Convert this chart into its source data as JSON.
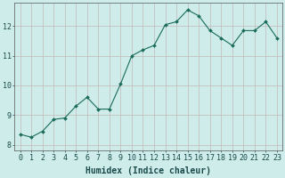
{
  "x": [
    0,
    1,
    2,
    3,
    4,
    5,
    6,
    7,
    8,
    9,
    10,
    11,
    12,
    13,
    14,
    15,
    16,
    17,
    18,
    19,
    20,
    21,
    22,
    23
  ],
  "y": [
    8.35,
    8.25,
    8.45,
    8.85,
    8.9,
    9.3,
    9.6,
    9.2,
    9.2,
    10.05,
    11.0,
    11.2,
    11.35,
    12.05,
    12.15,
    12.55,
    12.35,
    11.85,
    11.6,
    11.35,
    11.85,
    11.85,
    12.15,
    11.6
  ],
  "line_color": "#1a6b5a",
  "marker": "D",
  "marker_size": 2.0,
  "linewidth": 0.8,
  "xlabel": "Humidex (Indice chaleur)",
  "xlabel_fontsize": 7,
  "xlabel_bold": true,
  "bg_color": "#cdecea",
  "grid_major_color": "#c4b8b8",
  "grid_minor_color": "#d4c8c8",
  "tick_label_fontsize": 6,
  "ylim": [
    7.8,
    12.8
  ],
  "xlim": [
    -0.5,
    23.5
  ],
  "yticks": [
    8,
    9,
    10,
    11,
    12
  ],
  "xticks": [
    0,
    1,
    2,
    3,
    4,
    5,
    6,
    7,
    8,
    9,
    10,
    11,
    12,
    13,
    14,
    15,
    16,
    17,
    18,
    19,
    20,
    21,
    22,
    23
  ]
}
